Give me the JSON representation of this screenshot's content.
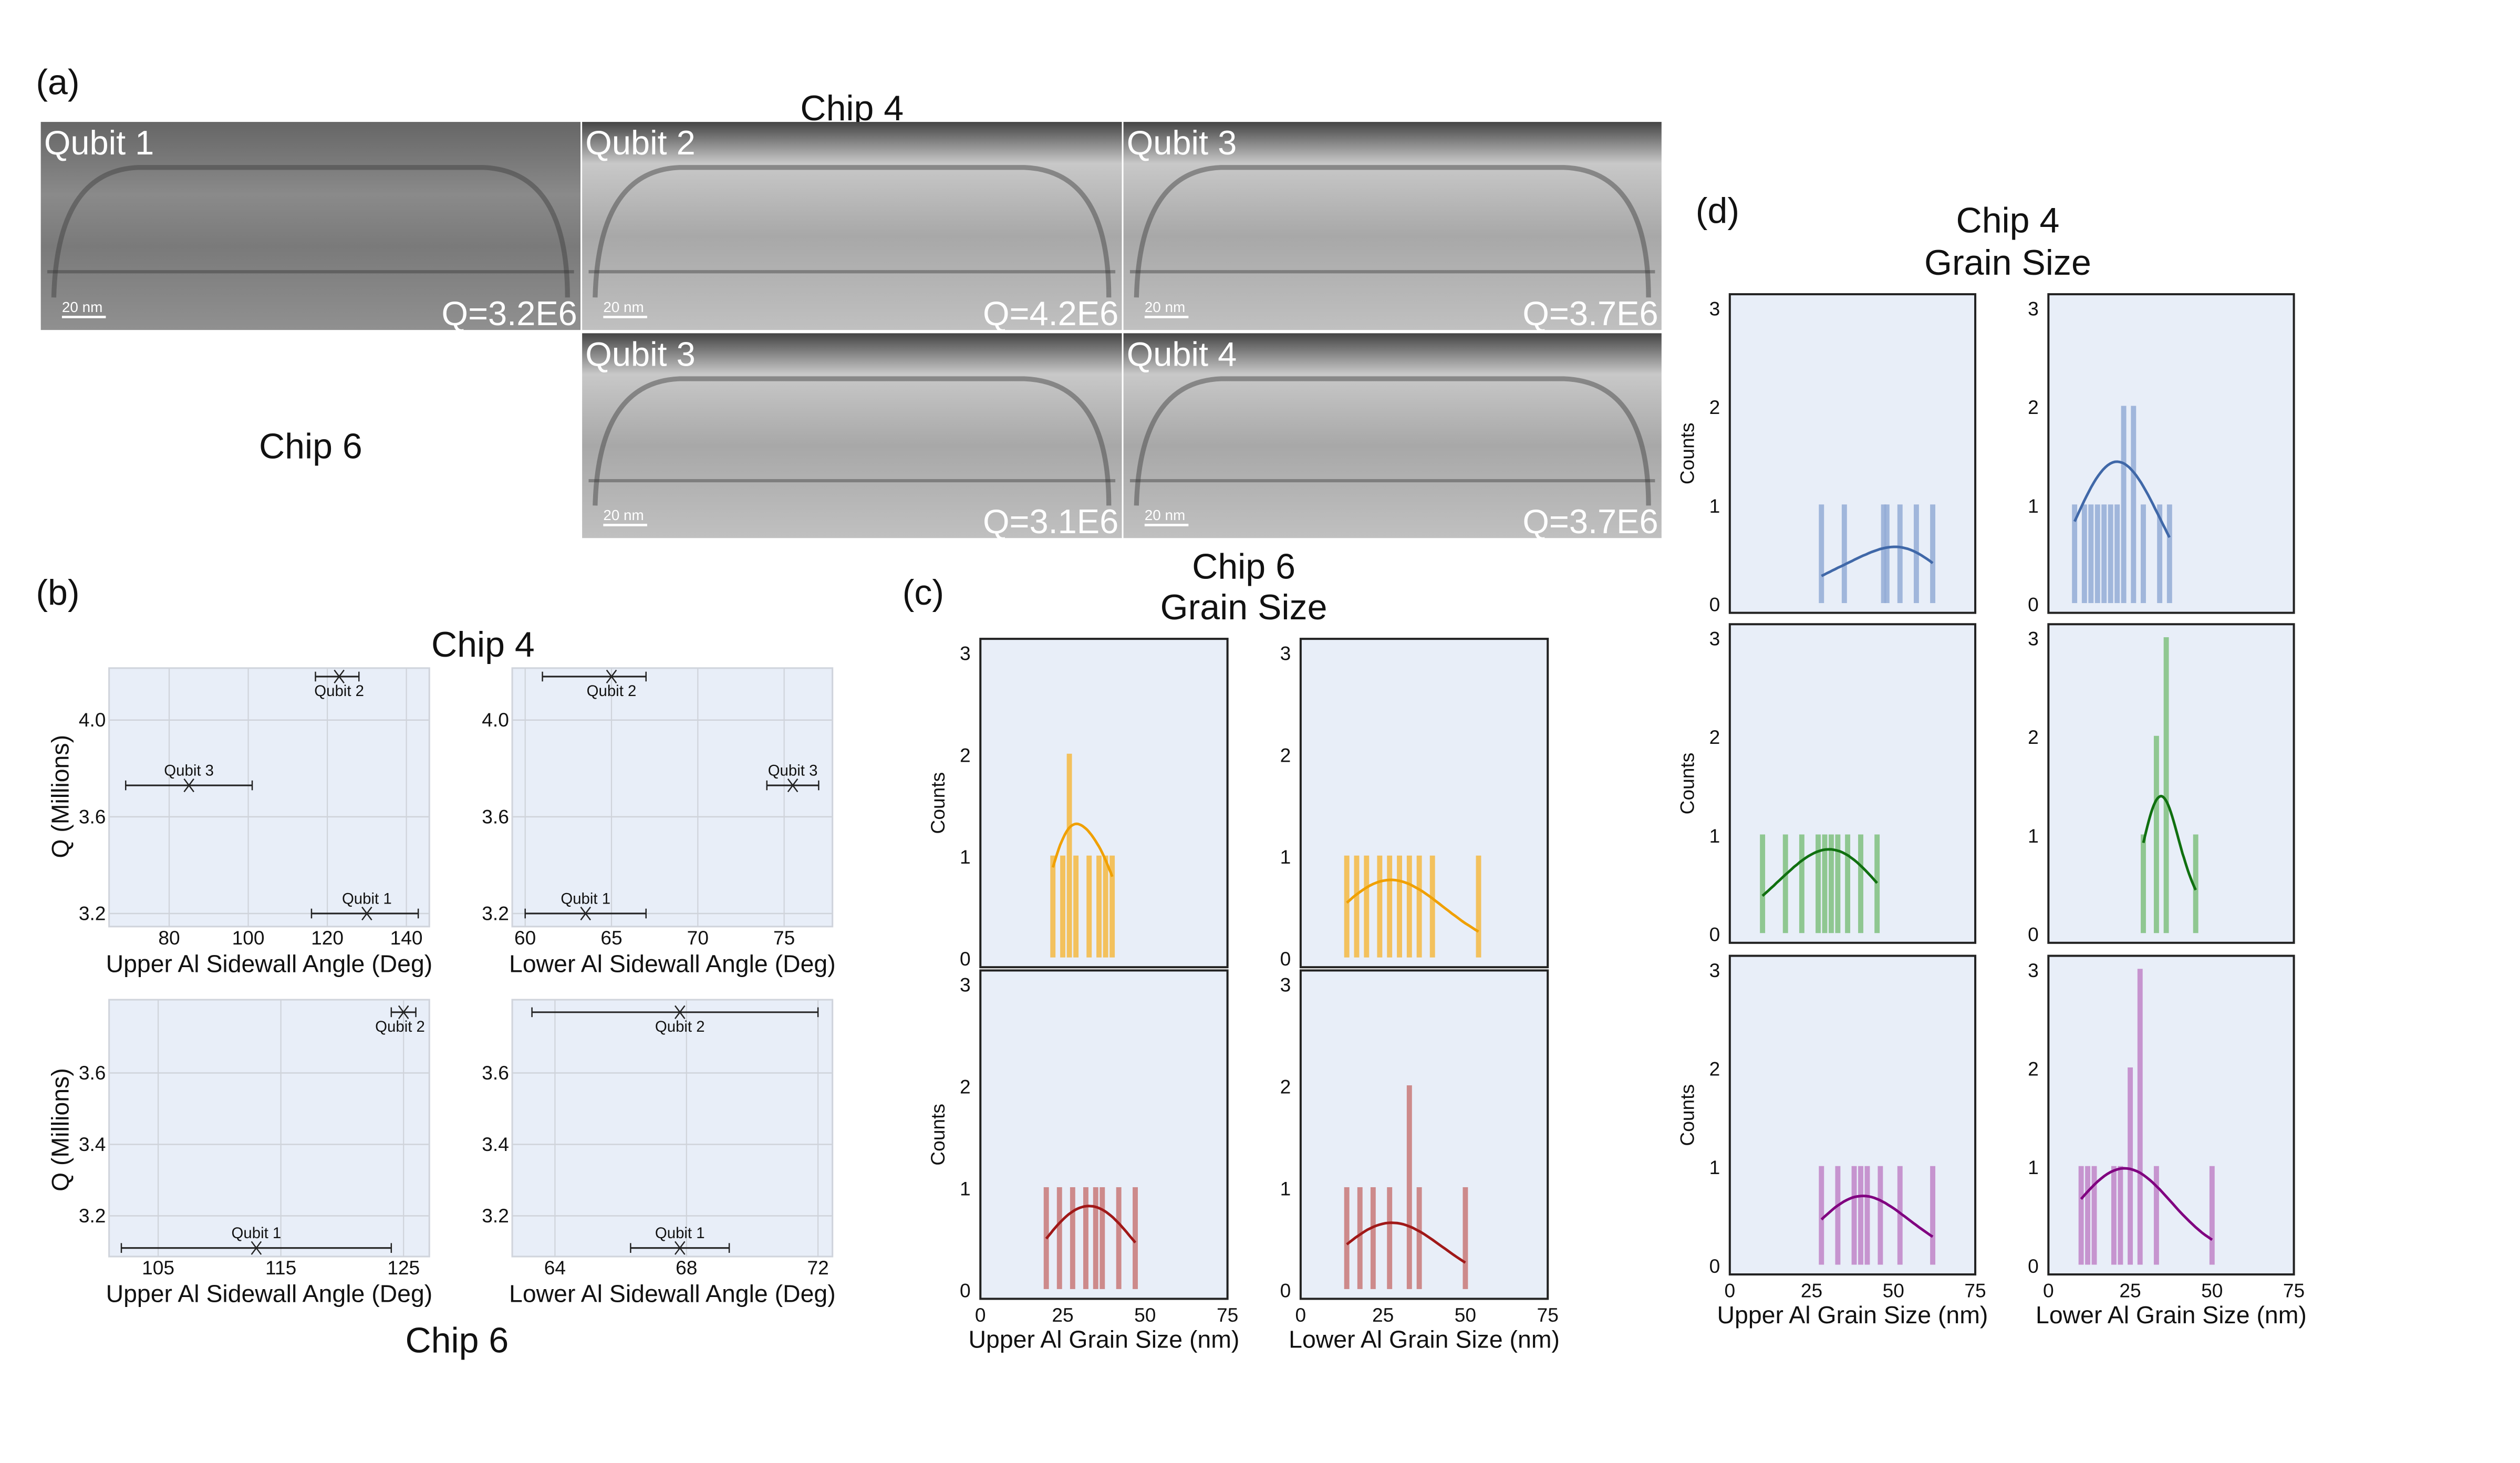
{
  "panel_labels": {
    "a": "(a)",
    "b": "(b)",
    "c": "(c)",
    "d": "(d)"
  },
  "panel_a": {
    "chip4_title": "Chip 4",
    "chip6_title": "Chip 6",
    "scale_bar": "20 nm",
    "images": [
      {
        "label": "Qubit 1",
        "q": "Q=3.2E6",
        "chip": "Chip 4"
      },
      {
        "label": "Qubit 2",
        "q": "Q=4.2E6",
        "chip": "Chip 4"
      },
      {
        "label": "Qubit 3",
        "q": "Q=3.7E6",
        "chip": "Chip 4"
      },
      {
        "label": "Qubit 3",
        "q": "Q=3.1E6",
        "chip": "Chip 6"
      },
      {
        "label": "Qubit 4",
        "q": "Q=3.7E6",
        "chip": "Chip 6"
      }
    ]
  },
  "panel_b": {
    "top_title": "Chip 4",
    "bottom_title": "Chip 6",
    "ylabel": "Q (Millions)"
  },
  "panel_c": {
    "title_line1": "Chip 6",
    "title_line2": "Grain Size",
    "ylabel": "Counts"
  },
  "panel_d": {
    "title_line1": "Chip 4",
    "title_line2": "Grain Size",
    "ylabel": "Counts"
  },
  "chart_data": [
    {
      "type": "scatter",
      "group": "b",
      "chip": "Chip 4",
      "xlabel": "Upper Al Sidewall Angle (Deg)",
      "ylabel": "Q (Millions)",
      "xlim": [
        64.8,
        145.8
      ],
      "ylim": [
        3.146,
        4.215
      ],
      "xticks": [
        80,
        100,
        120,
        140
      ],
      "yticks": [
        3.2,
        3.6,
        4.0
      ],
      "grid": true,
      "points": [
        {
          "label": "Qubit 1",
          "x": 130,
          "xerr": [
            116,
            143
          ],
          "y": 3.2
        },
        {
          "label": "Qubit 2",
          "x": 123,
          "xerr": [
            117,
            128
          ],
          "y": 4.18
        },
        {
          "label": "Qubit 3",
          "x": 85,
          "xerr": [
            69,
            101
          ],
          "y": 3.73
        }
      ]
    },
    {
      "type": "scatter",
      "group": "b",
      "chip": "Chip 4",
      "xlabel": "Lower Al Sidewall Angle (Deg)",
      "ylabel": "",
      "xlim": [
        59.25,
        77.8
      ],
      "ylim": [
        3.146,
        4.215
      ],
      "xticks": [
        60,
        65,
        70,
        75
      ],
      "yticks": [
        3.2,
        3.6,
        4.0
      ],
      "grid": true,
      "points": [
        {
          "label": "Qubit 1",
          "x": 63.5,
          "xerr": [
            60,
            67
          ],
          "y": 3.2
        },
        {
          "label": "Qubit 2",
          "x": 65,
          "xerr": [
            61,
            67
          ],
          "y": 4.18
        },
        {
          "label": "Qubit 3",
          "x": 75.5,
          "xerr": [
            74,
            77
          ],
          "y": 3.73
        }
      ]
    },
    {
      "type": "scatter",
      "group": "b",
      "chip": "Chip 6",
      "xlabel": "Upper Al Sidewall Angle (Deg)",
      "ylabel": "Q (Millions)",
      "xlim": [
        101.0,
        127.1
      ],
      "ylim": [
        3.086,
        3.805
      ],
      "xticks": [
        105,
        115,
        125
      ],
      "yticks": [
        3.2,
        3.4,
        3.6
      ],
      "grid": true,
      "points": [
        {
          "label": "Qubit 1",
          "x": 113,
          "xerr": [
            102,
            124
          ],
          "y": 3.11
        },
        {
          "label": "Qubit 2",
          "x": 125,
          "xerr": [
            124,
            126
          ],
          "y": 3.77
        }
      ]
    },
    {
      "type": "scatter",
      "group": "b",
      "chip": "Chip 6",
      "xlabel": "Lower Al Sidewall Angle (Deg)",
      "ylabel": "",
      "xlim": [
        62.7,
        72.44
      ],
      "ylim": [
        3.086,
        3.805
      ],
      "xticks": [
        64,
        68,
        72
      ],
      "yticks": [
        3.2,
        3.4,
        3.6
      ],
      "grid": true,
      "points": [
        {
          "label": "Qubit 1",
          "x": 67.8,
          "xerr": [
            66.3,
            69.3
          ],
          "y": 3.11
        },
        {
          "label": "Qubit 2",
          "x": 67.8,
          "xerr": [
            63.3,
            72.0
          ],
          "y": 3.77
        }
      ]
    },
    {
      "type": "bar",
      "group": "c",
      "row": 0,
      "col": 0,
      "color": "#f5b942",
      "kde": "#f0a000",
      "xlabel": "",
      "ylabel": "Counts",
      "xlim": [
        0,
        75
      ],
      "ylim": [
        0,
        3
      ],
      "xticks": [],
      "yticks": [
        0,
        1,
        2,
        3
      ],
      "bins": [
        [
          22,
          1
        ],
        [
          25,
          1
        ],
        [
          27,
          2
        ],
        [
          29,
          1
        ],
        [
          33,
          1
        ],
        [
          36,
          1
        ],
        [
          38,
          1
        ],
        [
          40,
          1
        ]
      ]
    },
    {
      "type": "bar",
      "group": "c",
      "row": 0,
      "col": 1,
      "color": "#f5b942",
      "kde": "#f0a000",
      "xlabel": "",
      "ylabel": "",
      "xlim": [
        0,
        75
      ],
      "ylim": [
        0,
        3
      ],
      "xticks": [],
      "yticks": [
        0,
        1,
        2,
        3
      ],
      "bins": [
        [
          14,
          1
        ],
        [
          17,
          1
        ],
        [
          20,
          1
        ],
        [
          24,
          1
        ],
        [
          27,
          1
        ],
        [
          30,
          1
        ],
        [
          33,
          1
        ],
        [
          36,
          1
        ],
        [
          40,
          1
        ],
        [
          54,
          1
        ]
      ]
    },
    {
      "type": "bar",
      "group": "c",
      "row": 1,
      "col": 0,
      "color": "#c87878",
      "kde": "#a01818",
      "xlabel": "Upper Al Grain Size (nm)",
      "ylabel": "Counts",
      "xlim": [
        0,
        75
      ],
      "ylim": [
        0,
        3
      ],
      "xticks": [
        0,
        25,
        50,
        75
      ],
      "yticks": [
        0,
        1,
        2,
        3
      ],
      "bins": [
        [
          20,
          1
        ],
        [
          24,
          1
        ],
        [
          28,
          1
        ],
        [
          32,
          1
        ],
        [
          35,
          1
        ],
        [
          37,
          1
        ],
        [
          42,
          1
        ],
        [
          47,
          1
        ]
      ]
    },
    {
      "type": "bar",
      "group": "c",
      "row": 1,
      "col": 1,
      "color": "#c87878",
      "kde": "#a01818",
      "xlabel": "Lower Al Grain Size (nm)",
      "ylabel": "",
      "xlim": [
        0,
        75
      ],
      "ylim": [
        0,
        3
      ],
      "xticks": [
        0,
        25,
        50,
        75
      ],
      "yticks": [
        0,
        1,
        2,
        3
      ],
      "bins": [
        [
          14,
          1
        ],
        [
          18,
          1
        ],
        [
          22,
          1
        ],
        [
          27,
          1
        ],
        [
          33,
          2
        ],
        [
          36,
          1
        ],
        [
          50,
          1
        ]
      ]
    },
    {
      "type": "bar",
      "group": "d",
      "row": 0,
      "col": 0,
      "color": "#93acd6",
      "kde": "#4068a8",
      "xlabel": "",
      "ylabel": "Counts",
      "xlim": [
        0,
        75
      ],
      "ylim": [
        0,
        3
      ],
      "xticks": [],
      "yticks": [
        0,
        1,
        2,
        3
      ],
      "bins": [
        [
          28,
          1
        ],
        [
          35,
          1
        ],
        [
          47,
          1
        ],
        [
          48,
          1
        ],
        [
          52,
          1
        ],
        [
          57,
          1
        ],
        [
          62,
          1
        ]
      ]
    },
    {
      "type": "bar",
      "group": "d",
      "row": 0,
      "col": 1,
      "color": "#93acd6",
      "kde": "#4068a8",
      "xlabel": "",
      "ylabel": "",
      "xlim": [
        0,
        75
      ],
      "ylim": [
        0,
        3
      ],
      "xticks": [],
      "yticks": [
        0,
        1,
        2,
        3
      ],
      "bins": [
        [
          8,
          1
        ],
        [
          11,
          1
        ],
        [
          13,
          1
        ],
        [
          15,
          1
        ],
        [
          17,
          1
        ],
        [
          19,
          1
        ],
        [
          21,
          1
        ],
        [
          23,
          2
        ],
        [
          26,
          2
        ],
        [
          29,
          1
        ],
        [
          34,
          1
        ],
        [
          37,
          1
        ]
      ]
    },
    {
      "type": "bar",
      "group": "d",
      "row": 1,
      "col": 0,
      "color": "#7fbf7f",
      "kde": "#107010",
      "xlabel": "",
      "ylabel": "Counts",
      "xlim": [
        0,
        75
      ],
      "ylim": [
        0,
        3
      ],
      "xticks": [],
      "yticks": [
        0,
        1,
        2,
        3
      ],
      "bins": [
        [
          10,
          1
        ],
        [
          17,
          1
        ],
        [
          22,
          1
        ],
        [
          27,
          1
        ],
        [
          29,
          1
        ],
        [
          31,
          1
        ],
        [
          33,
          1
        ],
        [
          36,
          1
        ],
        [
          40,
          1
        ],
        [
          45,
          1
        ]
      ]
    },
    {
      "type": "bar",
      "group": "d",
      "row": 1,
      "col": 1,
      "color": "#7fbf7f",
      "kde": "#107010",
      "xlabel": "",
      "ylabel": "",
      "xlim": [
        0,
        75
      ],
      "ylim": [
        0,
        3
      ],
      "xticks": [],
      "yticks": [
        0,
        1,
        2,
        3
      ],
      "bins": [
        [
          29,
          1
        ],
        [
          33,
          2
        ],
        [
          36,
          3
        ],
        [
          45,
          1
        ]
      ]
    },
    {
      "type": "bar",
      "group": "d",
      "row": 2,
      "col": 0,
      "color": "#c084c8",
      "kde": "#800080",
      "xlabel": "Upper Al Grain Size (nm)",
      "ylabel": "Counts",
      "xlim": [
        0,
        75
      ],
      "ylim": [
        0,
        3
      ],
      "xticks": [
        0,
        25,
        50,
        75
      ],
      "yticks": [
        0,
        1,
        2,
        3
      ],
      "bins": [
        [
          28,
          1
        ],
        [
          33,
          1
        ],
        [
          38,
          1
        ],
        [
          40,
          1
        ],
        [
          42,
          1
        ],
        [
          46,
          1
        ],
        [
          52,
          1
        ],
        [
          62,
          1
        ]
      ]
    },
    {
      "type": "bar",
      "group": "d",
      "row": 2,
      "col": 1,
      "color": "#c084c8",
      "kde": "#800080",
      "xlabel": "Lower Al Grain Size (nm)",
      "ylabel": "",
      "xlim": [
        0,
        75
      ],
      "ylim": [
        0,
        3
      ],
      "xticks": [
        0,
        25,
        50,
        75
      ],
      "yticks": [
        0,
        1,
        2,
        3
      ],
      "bins": [
        [
          10,
          1
        ],
        [
          12,
          1
        ],
        [
          14,
          1
        ],
        [
          20,
          1
        ],
        [
          22,
          1
        ],
        [
          25,
          2
        ],
        [
          28,
          3
        ],
        [
          33,
          1
        ],
        [
          50,
          1
        ]
      ]
    }
  ]
}
